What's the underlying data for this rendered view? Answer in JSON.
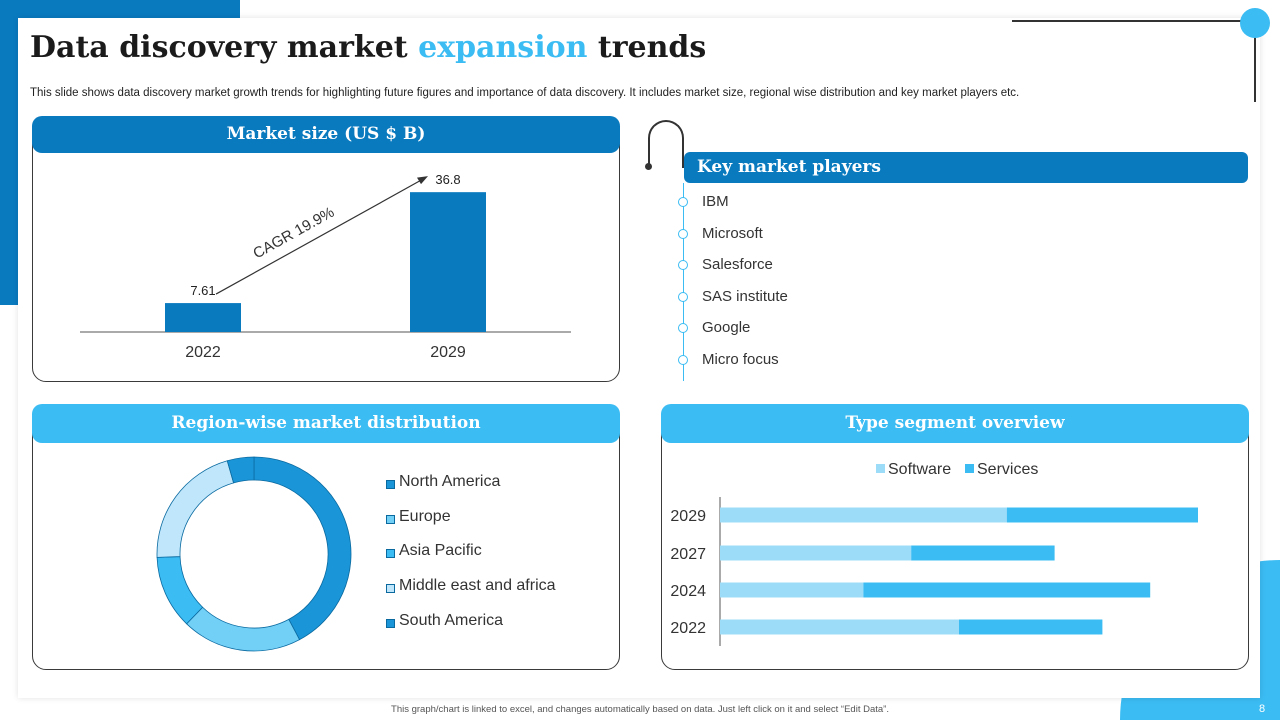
{
  "title": {
    "main": "Data discovery market",
    "accent": "expansion",
    "end": "trends"
  },
  "subtitle": "This slide shows data discovery market growth trends for highlighting future figures and importance of data discovery. It includes market size, regional wise distribution and key market players etc.",
  "market_size": {
    "heading": "Market size (US $ B)",
    "cagr_label": "CAGR 19.9%"
  },
  "key_players": {
    "heading": "Key market players",
    "items": [
      "IBM",
      "Microsoft",
      "Salesforce",
      "SAS institute",
      "Google",
      "Micro focus"
    ]
  },
  "region": {
    "heading": "Region-wise market distribution"
  },
  "type_segment": {
    "heading": "Type segment overview"
  },
  "footer": "This graph/chart is linked to excel, and changes automatically based on data. Just left click on it and select “Edit Data”.",
  "page_number": "8",
  "colors": {
    "dark_blue": "#0a7abf",
    "light_blue": "#3bbcf3",
    "pale_blue": "#a9e0f9"
  },
  "chart_data": [
    {
      "type": "bar",
      "title": "Market size (US $ B)",
      "categories": [
        "2022",
        "2029"
      ],
      "values": [
        7.61,
        36.8
      ],
      "data_labels": [
        "7.61",
        "36.8"
      ],
      "annotation": "CAGR 19.9%",
      "ylim": [
        0,
        40
      ]
    },
    {
      "type": "pie",
      "title": "Region-wise market distribution",
      "donut": true,
      "labels": [
        "North America",
        "Europe",
        "Asia Pacific",
        "Middle east and africa",
        "South America"
      ],
      "values": [
        38,
        18,
        11,
        19,
        4
      ],
      "colors": [
        "#1a95d8",
        "#72cff6",
        "#3bbcf3",
        "#bfe6fb",
        "#1a95d8"
      ]
    },
    {
      "type": "bar",
      "orientation": "horizontal",
      "stacked": true,
      "title": "Type segment overview",
      "categories": [
        "2029",
        "2027",
        "2024",
        "2022"
      ],
      "series": [
        {
          "name": "Software",
          "values": [
            60,
            40,
            30,
            50
          ],
          "color": "#9ddcf9"
        },
        {
          "name": "Services",
          "values": [
            40,
            30,
            60,
            30
          ],
          "color": "#3bbcf3"
        }
      ],
      "xlim": [
        0,
        100
      ]
    }
  ]
}
